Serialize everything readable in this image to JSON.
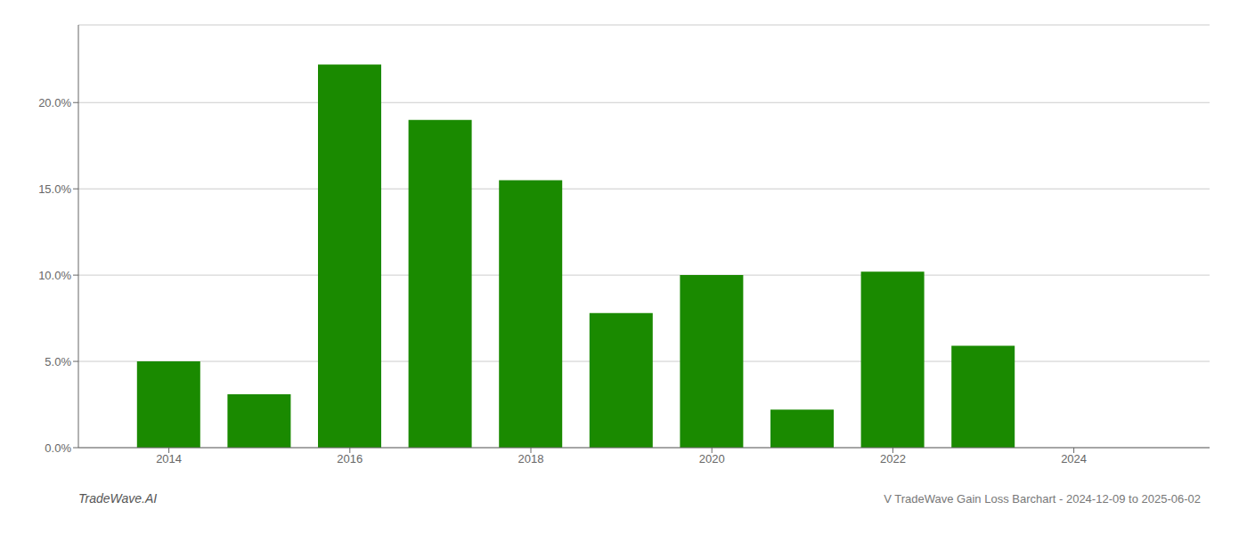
{
  "chart_data": {
    "type": "bar",
    "title": "V TradeWave Gain Loss Barchart - 2024-12-09 to 2025-06-02",
    "annotations": [
      "TradeWave.AI"
    ],
    "x": [
      2014,
      2015,
      2016,
      2017,
      2018,
      2019,
      2020,
      2021,
      2022,
      2023
    ],
    "values": [
      0.05,
      0.031,
      0.222,
      0.19,
      0.155,
      0.078,
      0.1,
      0.022,
      0.102,
      0.059
    ],
    "color": "#1a8a00",
    "xlim": [
      2013.0,
      2025.5
    ],
    "xticks": [
      2014,
      2016,
      2018,
      2020,
      2022,
      2024
    ],
    "ylim": [
      0.0,
      0.245
    ],
    "yticks": [
      {
        "value": 0.0,
        "label": "0.0%"
      },
      {
        "value": 0.05,
        "label": "5.0%"
      },
      {
        "value": 0.1,
        "label": "10.0%"
      },
      {
        "value": 0.15,
        "label": "15.0%"
      },
      {
        "value": 0.2,
        "label": "20.0%"
      }
    ],
    "grid": true
  }
}
